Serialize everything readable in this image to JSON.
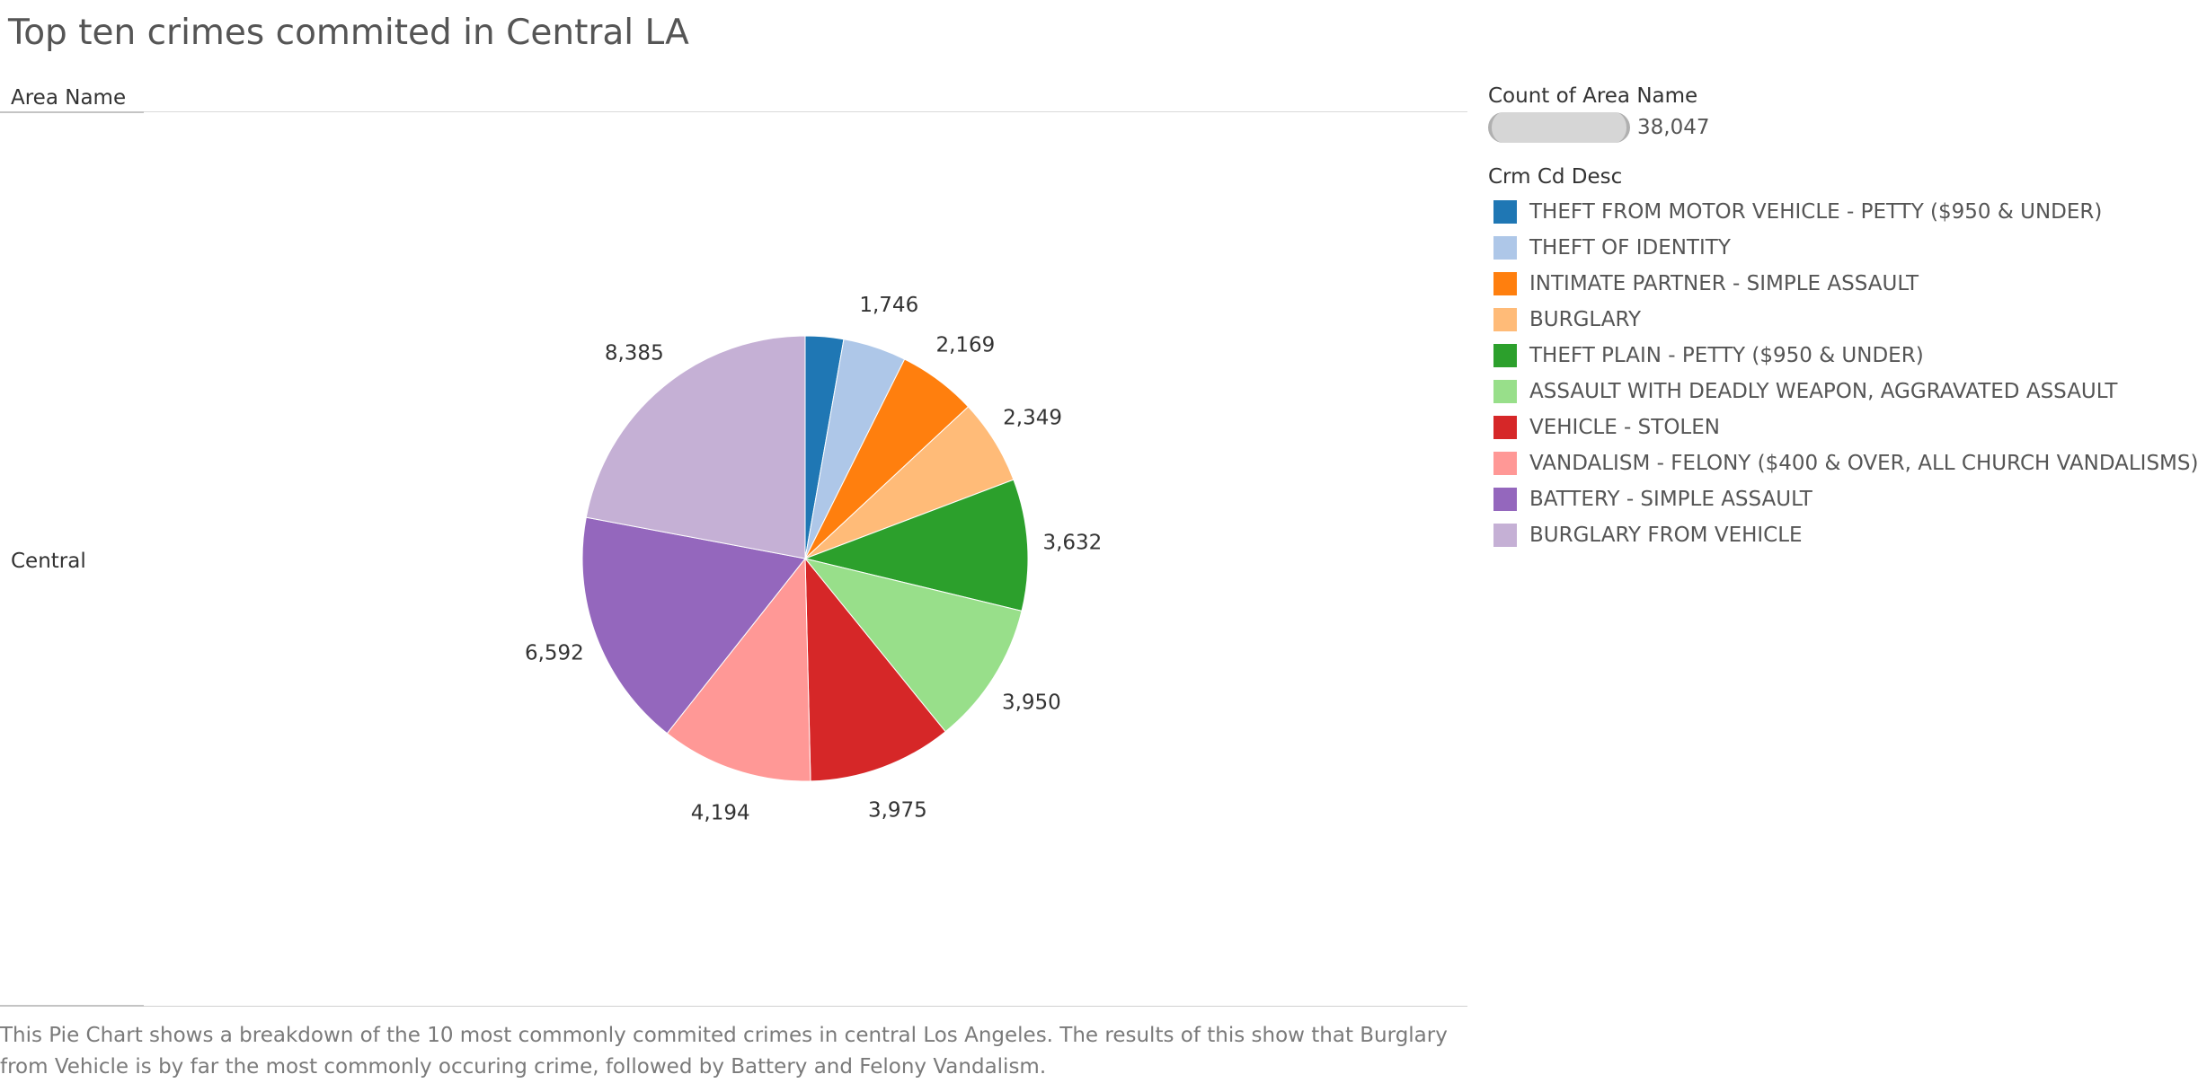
{
  "title": "Top ten crimes commited in Central LA",
  "row_header": "Area Name",
  "row_label": "Central",
  "caption": "This Pie Chart shows a breakdown of the 10 most commonly commited crimes in central Los Angeles. The results of this show that Burglary from Vehicle is by far the most commonly occuring crime, followed by Battery and Felony Vandalism.",
  "legend": {
    "size_heading": "Count of Area Name",
    "size_value": "38,047",
    "color_heading": "Crm Cd Desc"
  },
  "chart_data": {
    "type": "pie",
    "title": "Top ten crimes commited in Central LA",
    "categories": [
      "THEFT FROM MOTOR VEHICLE - PETTY ($950 & UNDER)",
      "THEFT OF IDENTITY",
      "INTIMATE PARTNER - SIMPLE ASSAULT",
      "BURGLARY",
      "THEFT PLAIN - PETTY ($950 & UNDER)",
      "ASSAULT WITH DEADLY WEAPON, AGGRAVATED ASSAULT",
      "VEHICLE - STOLEN",
      "VANDALISM - FELONY ($400 & OVER, ALL CHURCH VANDALISMS)",
      "BATTERY - SIMPLE ASSAULT",
      "BURGLARY FROM VEHICLE"
    ],
    "values": [
      1055,
      1746,
      2169,
      2349,
      3632,
      3950,
      3975,
      4194,
      6592,
      8385
    ],
    "data_labels": [
      "",
      "1,746",
      "2,169",
      "2,349",
      "3,632",
      "3,950",
      "3,975",
      "4,194",
      "6,592",
      "8,385"
    ],
    "colors": [
      "#1f77b4",
      "#aec7e8",
      "#ff7f0e",
      "#ffbb78",
      "#2ca02c",
      "#98df8a",
      "#d62728",
      "#ff9896",
      "#9467bd",
      "#c5b0d5"
    ],
    "total": 38047,
    "legend_position": "right"
  }
}
